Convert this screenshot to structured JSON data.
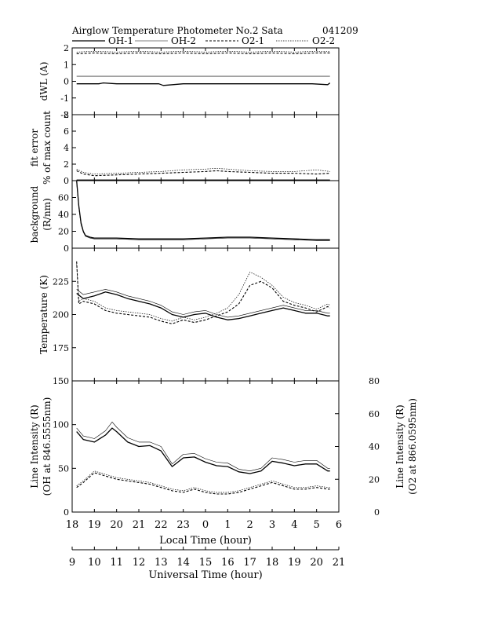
{
  "header": {
    "title": "Airglow Temperature Photometer No.2  Sata",
    "date": "041209",
    "legend": [
      "OH-1",
      "OH-2",
      "O2-1",
      "O2-2"
    ]
  },
  "colors": {
    "axis": "#000000",
    "oh": "#000000",
    "o2": "#000000",
    "oh2_outline": "#000000"
  },
  "chart_data": [
    {
      "type": "line",
      "panel": "dwl",
      "ylabel": "dWL  (A)",
      "ylim": [
        -2,
        2
      ],
      "yticks": [
        -2,
        -1,
        0,
        1,
        2
      ],
      "x_local_hour_range": [
        18,
        30
      ],
      "series": [
        {
          "name": "OH-1",
          "x": [
            18.2,
            19.2,
            19.4,
            20,
            21,
            21.9,
            22.1,
            23,
            24,
            25,
            25.8,
            26.2,
            27,
            28,
            28.8,
            29.5,
            29.6
          ],
          "y": [
            -0.15,
            -0.15,
            -0.1,
            -0.15,
            -0.15,
            -0.15,
            -0.25,
            -0.15,
            -0.15,
            -0.15,
            -0.15,
            -0.15,
            -0.15,
            -0.15,
            -0.15,
            -0.2,
            -0.1
          ]
        },
        {
          "name": "OH-2",
          "x": [
            18.2,
            29.6
          ],
          "y": [
            0.3,
            0.3
          ]
        },
        {
          "name": "O2-1",
          "x": [
            18.2,
            19,
            20,
            21,
            22,
            23,
            24,
            25,
            26,
            27,
            28,
            29,
            29.6
          ],
          "y": [
            1.65,
            1.7,
            1.65,
            1.7,
            1.65,
            1.7,
            1.65,
            1.7,
            1.65,
            1.7,
            1.65,
            1.7,
            1.7
          ]
        },
        {
          "name": "O2-2",
          "x": [
            18.2,
            19,
            20,
            21,
            22,
            23,
            24,
            25,
            26,
            27,
            28,
            29,
            29.6
          ],
          "y": [
            1.75,
            1.8,
            1.75,
            1.8,
            1.75,
            1.8,
            1.75,
            1.8,
            1.75,
            1.8,
            1.75,
            1.8,
            1.8
          ]
        }
      ]
    },
    {
      "type": "line",
      "panel": "fit_error",
      "ylabel": [
        "fit error",
        "% of max count"
      ],
      "ylim": [
        0,
        8
      ],
      "yticks": [
        0,
        2,
        4,
        6,
        8
      ],
      "x_local_hour_range": [
        18,
        30
      ],
      "series": [
        {
          "name": "OH-1",
          "x": [
            18.2,
            29.6
          ],
          "y": [
            0.05,
            0.05
          ]
        },
        {
          "name": "OH-2",
          "x": [
            18.2,
            29.6
          ],
          "y": [
            0.1,
            0.1
          ]
        },
        {
          "name": "O2-1",
          "x": [
            18.2,
            18.5,
            19,
            20,
            21,
            22,
            23,
            24,
            24.5,
            25,
            26,
            27,
            28,
            29,
            29.6
          ],
          "y": [
            1.2,
            0.8,
            0.6,
            0.7,
            0.8,
            0.9,
            1.0,
            1.1,
            1.2,
            1.1,
            1.0,
            0.9,
            0.9,
            0.8,
            0.9
          ]
        },
        {
          "name": "O2-2",
          "x": [
            18.2,
            18.5,
            19,
            20,
            21,
            22,
            23,
            24,
            24.5,
            25,
            26,
            27,
            28,
            29,
            29.6
          ],
          "y": [
            1.4,
            1.0,
            0.8,
            0.9,
            1.0,
            1.1,
            1.3,
            1.4,
            1.5,
            1.4,
            1.2,
            1.1,
            1.1,
            1.3,
            1.1
          ]
        }
      ]
    },
    {
      "type": "line",
      "panel": "background",
      "ylabel": [
        "background",
        "(R/nm)"
      ],
      "ylim": [
        0,
        80
      ],
      "yticks": [
        0,
        20,
        40,
        60
      ],
      "x_local_hour_range": [
        18,
        30
      ],
      "series": [
        {
          "name": "OH-1",
          "x": [
            18.2,
            18.3,
            18.4,
            18.5,
            18.6,
            18.8,
            19,
            20,
            21,
            22,
            23,
            24,
            25,
            26,
            27,
            28,
            29,
            29.6
          ],
          "y": [
            80,
            50,
            30,
            20,
            15,
            13,
            12,
            12,
            11,
            11,
            11,
            12,
            13,
            13,
            12,
            11,
            10,
            10
          ]
        },
        {
          "name": "OH-2",
          "x": [
            18.2,
            18.3,
            18.4,
            18.5,
            18.6,
            18.8,
            19,
            20,
            21,
            22,
            23,
            24,
            25,
            26,
            27,
            28,
            29,
            29.6
          ],
          "y": [
            78,
            48,
            28,
            19,
            14,
            12,
            11,
            11,
            10,
            10,
            10,
            11,
            12,
            12,
            11,
            10,
            9,
            9
          ]
        }
      ]
    },
    {
      "type": "line",
      "panel": "temperature",
      "ylabel": "Temperature (K)",
      "ylim": [
        150,
        250
      ],
      "yticks": [
        175,
        200,
        225
      ],
      "x_local_hour_range": [
        18,
        30
      ],
      "series": [
        {
          "name": "OH-1",
          "x": [
            18.2,
            18.5,
            19,
            19.5,
            20,
            20.5,
            21,
            21.5,
            22,
            22.5,
            23,
            23.5,
            24,
            24.5,
            25,
            25.5,
            26,
            26.5,
            27,
            27.5,
            28,
            28.5,
            29,
            29.5,
            29.6
          ],
          "y": [
            216,
            212,
            214,
            217,
            215,
            212,
            210,
            208,
            205,
            200,
            198,
            200,
            201,
            198,
            196,
            197,
            199,
            201,
            203,
            205,
            203,
            201,
            201,
            199,
            199
          ]
        },
        {
          "name": "OH-2",
          "x": [
            18.2,
            18.5,
            19,
            19.5,
            20,
            20.5,
            21,
            21.5,
            22,
            22.5,
            23,
            23.5,
            24,
            24.5,
            25,
            25.5,
            26,
            26.5,
            27,
            27.5,
            28,
            28.5,
            29,
            29.5,
            29.6
          ],
          "y": [
            219,
            215,
            217,
            219,
            217,
            214,
            212,
            210,
            207,
            202,
            200,
            202,
            203,
            200,
            198,
            199,
            201,
            203,
            205,
            207,
            205,
            203,
            203,
            201,
            201
          ]
        },
        {
          "name": "O2-1",
          "x": [
            18.2,
            18.3,
            18.5,
            19,
            19.5,
            20,
            20.5,
            21,
            21.5,
            22,
            22.5,
            23,
            23.5,
            24,
            24.5,
            25,
            25.5,
            26,
            26.5,
            27,
            27.5,
            28,
            28.5,
            29,
            29.5,
            29.6
          ],
          "y": [
            240,
            208,
            210,
            208,
            203,
            201,
            200,
            199,
            198,
            195,
            193,
            196,
            194,
            196,
            199,
            202,
            208,
            222,
            225,
            220,
            210,
            207,
            205,
            202,
            206,
            205
          ]
        },
        {
          "name": "O2-2",
          "x": [
            18.2,
            18.3,
            18.5,
            19,
            19.5,
            20,
            20.5,
            21,
            21.5,
            22,
            22.5,
            23,
            23.5,
            24,
            24.5,
            25,
            25.5,
            26,
            26.5,
            27,
            27.5,
            28,
            28.5,
            29,
            29.5,
            29.6
          ],
          "y": [
            238,
            210,
            212,
            210,
            205,
            203,
            202,
            201,
            200,
            197,
            195,
            198,
            196,
            198,
            201,
            205,
            215,
            232,
            228,
            222,
            213,
            209,
            207,
            204,
            208,
            207
          ]
        }
      ]
    },
    {
      "type": "line",
      "panel": "line_intensity",
      "ylabel": [
        "Line Intensity (R)",
        "(OH at 846.5555nm)"
      ],
      "ylabel_right": [
        "Line Intensity (R)",
        "(O2 at 866.0595nm)"
      ],
      "ylim": [
        0,
        150
      ],
      "yticks": [
        0,
        50,
        100,
        150
      ],
      "ylim_right": [
        0,
        80
      ],
      "yticks_right": [
        0,
        20,
        40,
        60,
        80
      ],
      "x_local_hour_range": [
        18,
        30
      ],
      "xlabel": "Local Time (hour)",
      "xticklabels": [
        "18",
        "19",
        "20",
        "21",
        "22",
        "23",
        "0",
        "1",
        "2",
        "3",
        "4",
        "5",
        "6"
      ],
      "xlabel2": "Universal Time (hour)",
      "xticklabels2": [
        "9",
        "10",
        "11",
        "12",
        "13",
        "14",
        "15",
        "16",
        "17",
        "18",
        "19",
        "20",
        "21"
      ],
      "series": [
        {
          "name": "OH-1",
          "axis": "left",
          "x": [
            18.2,
            18.5,
            19,
            19.5,
            19.8,
            20,
            20.5,
            21,
            21.5,
            22,
            22.5,
            23,
            23.5,
            24,
            24.5,
            25,
            25.5,
            26,
            26.5,
            27,
            27.5,
            28,
            28.5,
            29,
            29.5,
            29.6
          ],
          "y": [
            92,
            83,
            80,
            88,
            96,
            92,
            80,
            75,
            76,
            70,
            52,
            62,
            63,
            57,
            53,
            52,
            46,
            44,
            47,
            58,
            56,
            53,
            55,
            55,
            47,
            47
          ]
        },
        {
          "name": "OH-2",
          "axis": "left",
          "x": [
            18.2,
            18.5,
            19,
            19.5,
            19.8,
            20,
            20.5,
            21,
            21.5,
            22,
            22.5,
            23,
            23.5,
            24,
            24.5,
            25,
            25.5,
            26,
            26.5,
            27,
            27.5,
            28,
            28.5,
            29,
            29.5,
            29.6
          ],
          "y": [
            96,
            87,
            84,
            93,
            103,
            97,
            85,
            80,
            80,
            75,
            55,
            66,
            67,
            61,
            57,
            56,
            49,
            47,
            50,
            62,
            60,
            57,
            59,
            59,
            50,
            50
          ]
        },
        {
          "name": "O2-1",
          "axis": "right",
          "x": [
            18.2,
            18.5,
            19,
            19.5,
            20,
            20.5,
            21,
            21.5,
            22,
            22.5,
            23,
            23.5,
            24,
            24.5,
            25,
            25.5,
            26,
            26.5,
            27,
            27.5,
            28,
            28.5,
            29,
            29.5,
            29.6
          ],
          "y": [
            15,
            18,
            24,
            22,
            20,
            19,
            18,
            17,
            15,
            13,
            12,
            14,
            12,
            11,
            11,
            12,
            14,
            16,
            18,
            16,
            14,
            14,
            15,
            14,
            14
          ]
        },
        {
          "name": "O2-2",
          "axis": "right",
          "x": [
            18.2,
            18.5,
            19,
            19.5,
            20,
            20.5,
            21,
            21.5,
            22,
            22.5,
            23,
            23.5,
            24,
            24.5,
            25,
            25.5,
            26,
            26.5,
            27,
            27.5,
            28,
            28.5,
            29,
            29.5,
            29.6
          ],
          "y": [
            16,
            19,
            25,
            23,
            21,
            20,
            19,
            18,
            16,
            14,
            13,
            15,
            13,
            12,
            12,
            13,
            15,
            17,
            19,
            17,
            15,
            15,
            16,
            15,
            15
          ]
        }
      ]
    }
  ]
}
